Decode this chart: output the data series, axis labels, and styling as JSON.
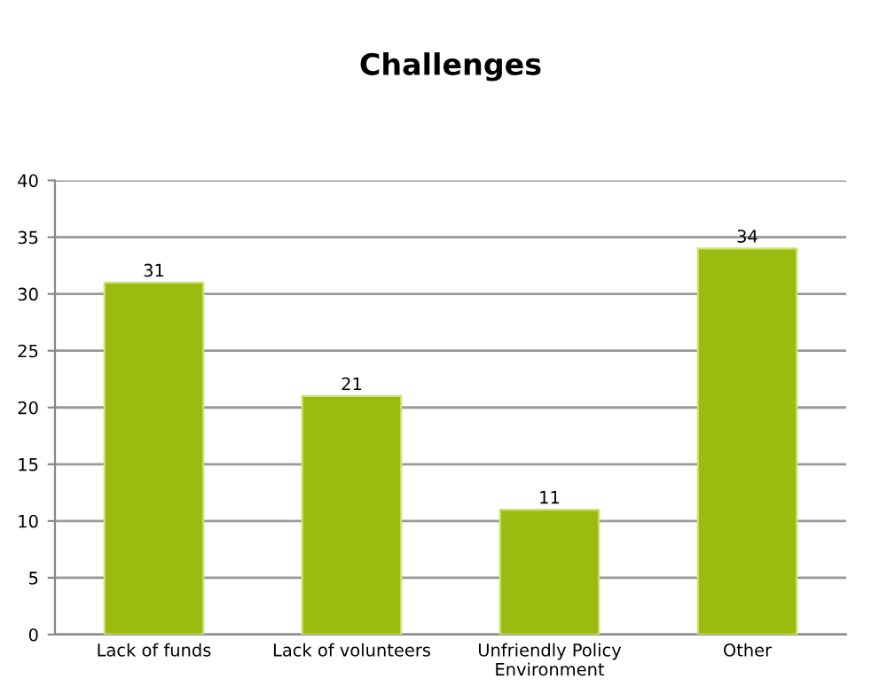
{
  "chart_data": {
    "type": "bar",
    "title": "Challenges",
    "categories": [
      "Lack of funds",
      "Lack of volunteers",
      "Unfriendly Policy\nEnvironment",
      "Other"
    ],
    "values": [
      31,
      21,
      11,
      34
    ],
    "color": "#9bbb0f",
    "ylim": [
      0,
      40
    ],
    "yticks": [
      0,
      5,
      10,
      15,
      20,
      25,
      30,
      35,
      40
    ],
    "grid": "y",
    "data_labels": true
  }
}
